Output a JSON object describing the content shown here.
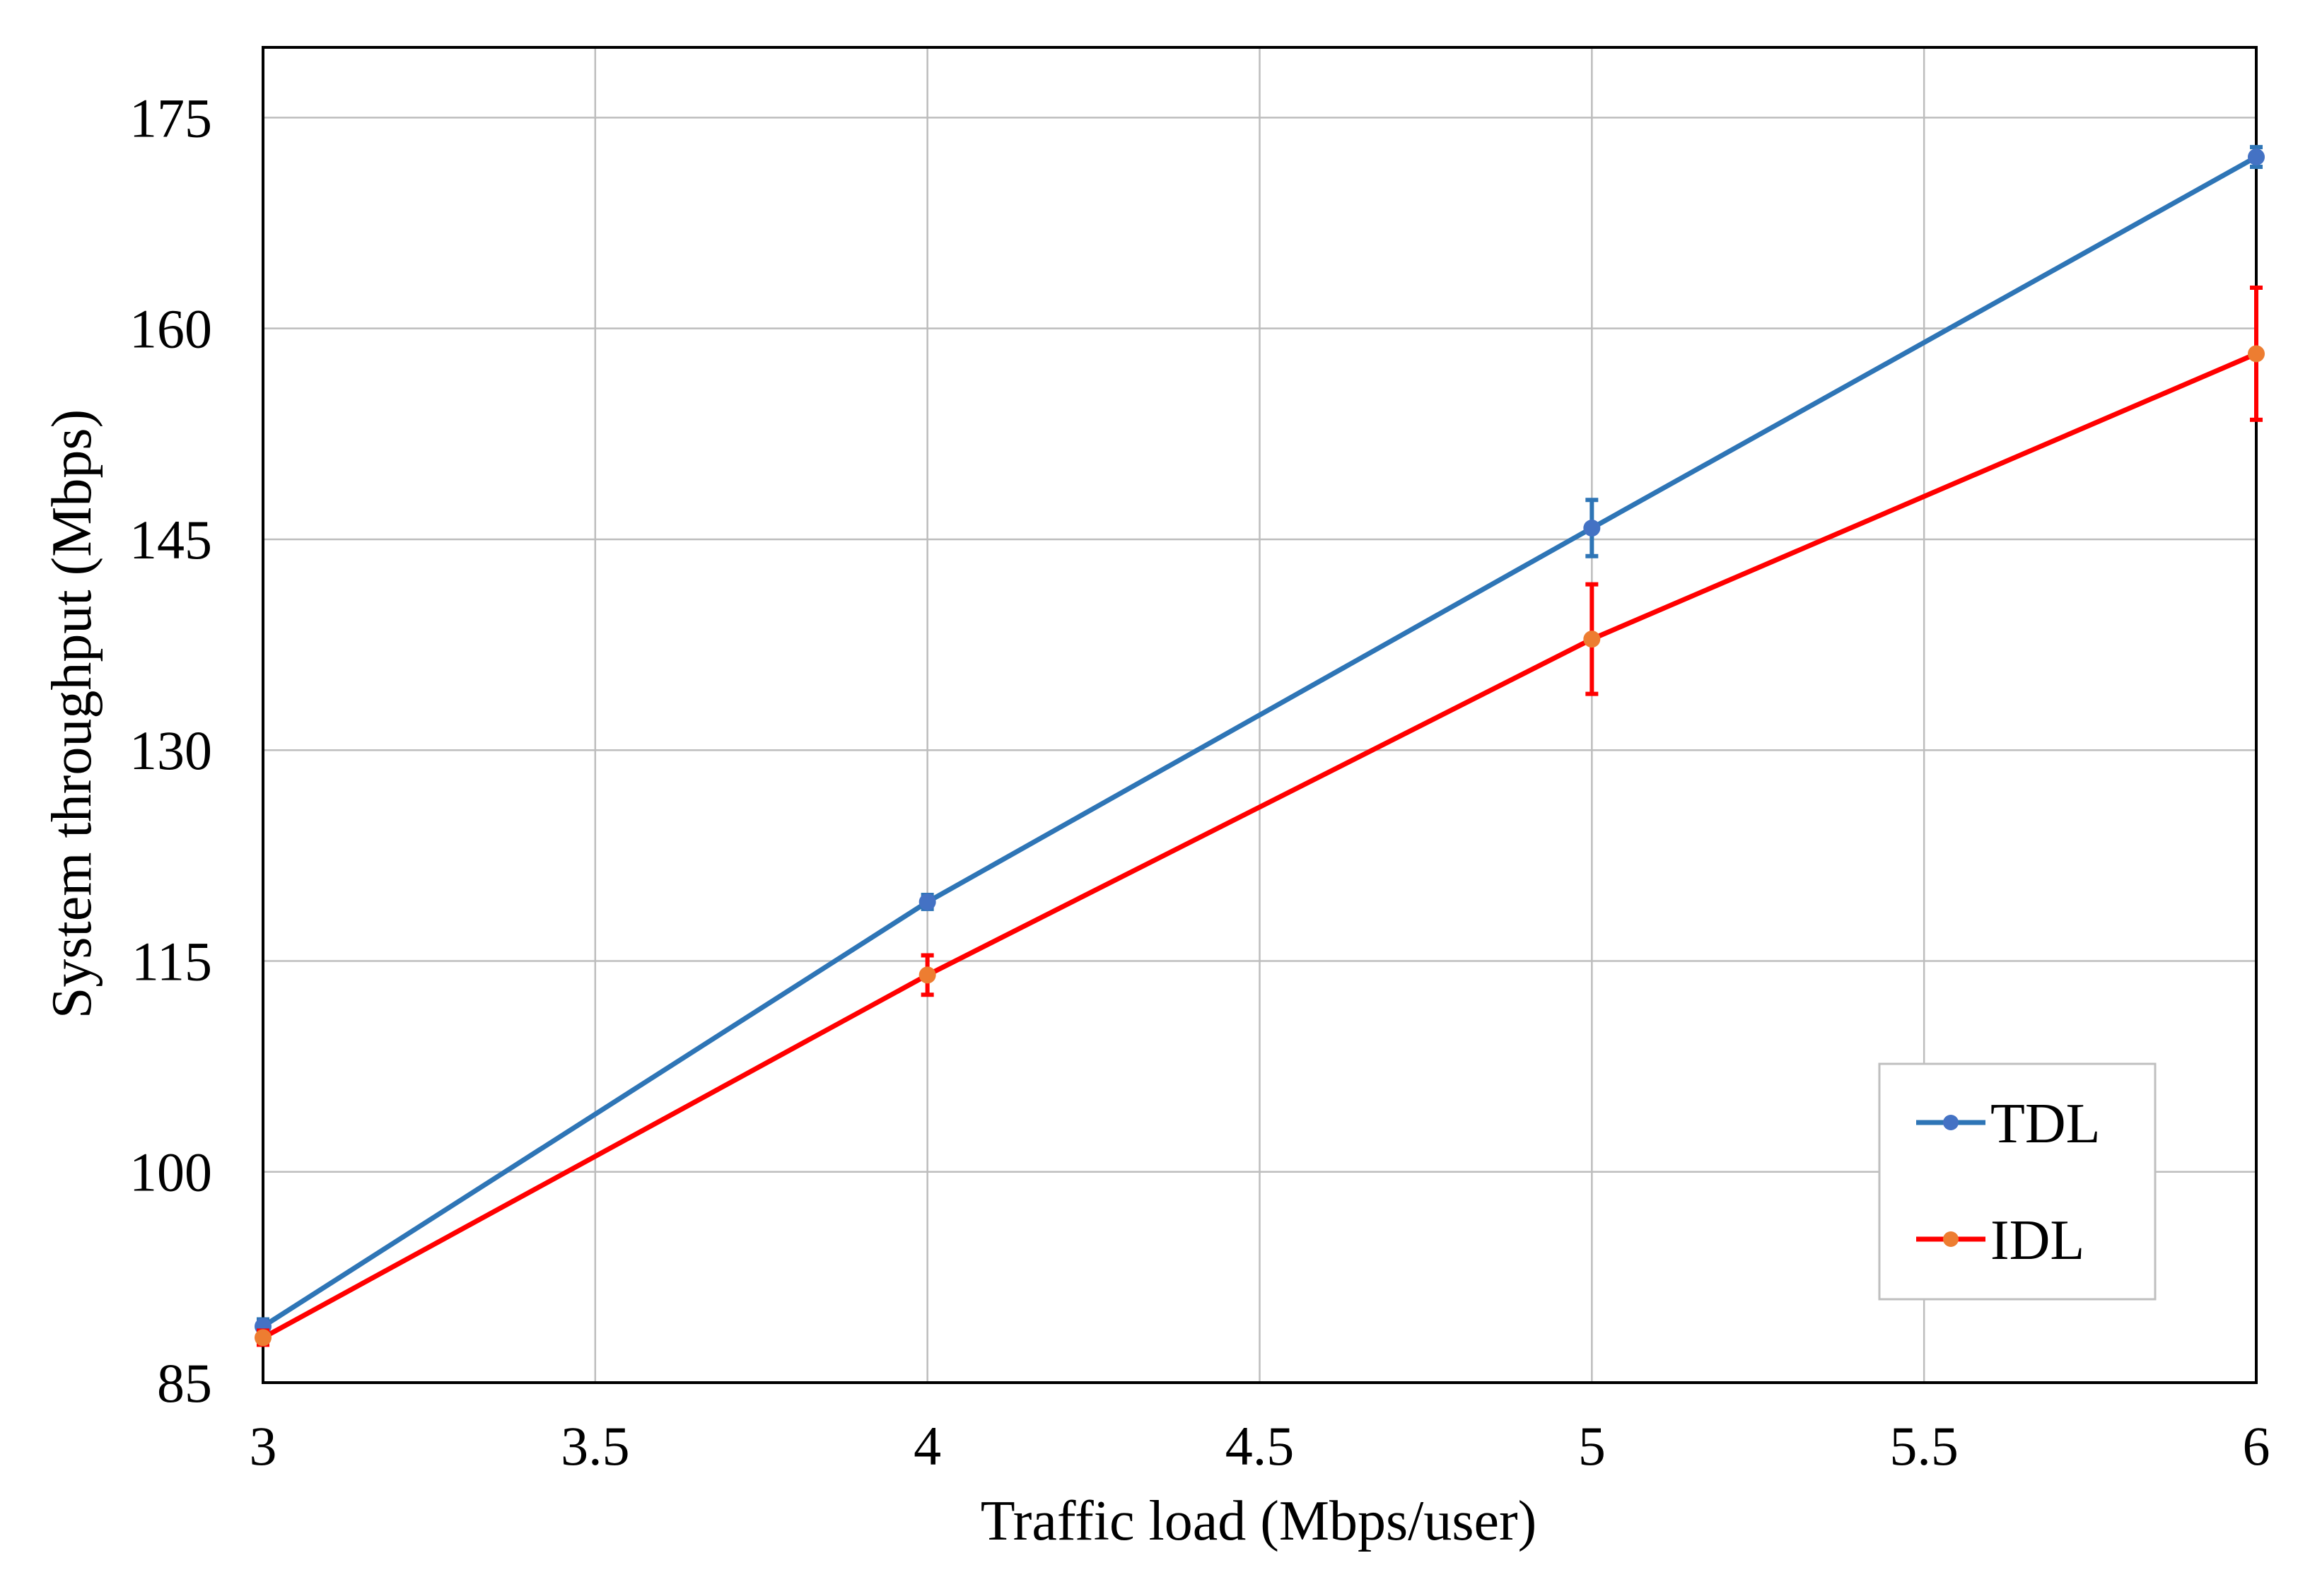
{
  "chart_data": {
    "type": "line",
    "title": "",
    "xlabel": "Traffic load (Mbps/user)",
    "ylabel": "System throughput (Mbps)",
    "xlim": [
      3,
      6
    ],
    "ylim": [
      85,
      180
    ],
    "x_ticks": [
      "3",
      "3.5",
      "4",
      "4.5",
      "5",
      "5.5",
      "6"
    ],
    "y_ticks": [
      "85",
      "100",
      "115",
      "130",
      "145",
      "160",
      "175"
    ],
    "grid": true,
    "legend_position": "bottom-right",
    "x": [
      3,
      4,
      5,
      6
    ],
    "series": [
      {
        "name": "TDL",
        "color": "#2e75b6",
        "marker_color": "#4472c4",
        "values": [
          89.0,
          119.2,
          145.8,
          172.2
        ],
        "errors": [
          0.5,
          0.5,
          2.0,
          0.7
        ]
      },
      {
        "name": "IDL",
        "color": "#ff0000",
        "marker_color": "#ed7d31",
        "values": [
          88.2,
          114.0,
          137.9,
          158.2
        ],
        "errors": [
          0.5,
          1.4,
          3.9,
          4.7
        ]
      }
    ]
  }
}
